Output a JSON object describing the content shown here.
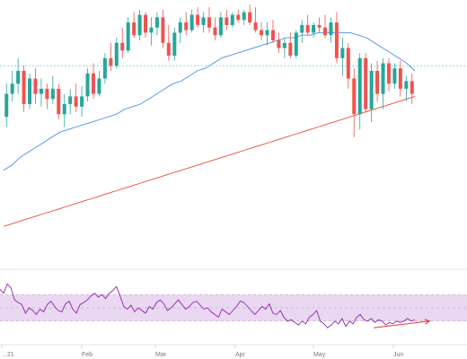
{
  "colors": {
    "up": "#26a69a",
    "down": "#ef5350",
    "ma50": "#4a90e2",
    "ma200": "#e74c3c",
    "rsi": "#8e24aa",
    "rsi_band": "#ead8f2",
    "divergence": "#e53935",
    "price_line": "#5bc0c0"
  },
  "chart_data": [
    {
      "type": "candlestick",
      "title": "",
      "xlabel": "",
      "ylabel": "",
      "x_ticks": [
        "...21",
        "Feb",
        "Mar",
        "Apr",
        "May",
        "Jun"
      ],
      "ylim": [
        0,
        100
      ],
      "current_price_line": 77,
      "grid": false,
      "ohlc": [
        [
          57,
          70,
          53,
          66
        ],
        [
          66,
          75,
          63,
          70
        ],
        [
          70,
          80,
          66,
          75
        ],
        [
          75,
          77,
          59,
          62
        ],
        [
          62,
          74,
          60,
          72
        ],
        [
          72,
          76,
          62,
          66
        ],
        [
          66,
          72,
          61,
          68
        ],
        [
          68,
          70,
          60,
          64
        ],
        [
          64,
          73,
          62,
          68
        ],
        [
          68,
          70,
          56,
          58
        ],
        [
          58,
          66,
          53,
          62
        ],
        [
          62,
          68,
          58,
          65
        ],
        [
          65,
          70,
          59,
          61
        ],
        [
          61,
          69,
          57,
          65
        ],
        [
          65,
          76,
          63,
          74
        ],
        [
          74,
          78,
          64,
          66
        ],
        [
          66,
          75,
          65,
          72
        ],
        [
          72,
          82,
          70,
          80
        ],
        [
          80,
          86,
          75,
          77
        ],
        [
          77,
          88,
          76,
          86
        ],
        [
          86,
          92,
          80,
          83
        ],
        [
          83,
          96,
          82,
          94
        ],
        [
          94,
          98,
          88,
          89
        ],
        [
          89,
          99,
          87,
          97
        ],
        [
          97,
          98,
          88,
          90
        ],
        [
          90,
          96,
          85,
          92
        ],
        [
          92,
          98,
          89,
          96
        ],
        [
          96,
          99,
          84,
          86
        ],
        [
          86,
          93,
          79,
          81
        ],
        [
          81,
          92,
          79,
          90
        ],
        [
          90,
          96,
          86,
          94
        ],
        [
          94,
          98,
          89,
          91
        ],
        [
          91,
          99,
          90,
          97
        ],
        [
          97,
          100,
          92,
          93
        ],
        [
          93,
          98,
          90,
          96
        ],
        [
          96,
          100,
          90,
          92
        ],
        [
          92,
          96,
          87,
          89
        ],
        [
          89,
          98,
          88,
          96
        ],
        [
          96,
          99,
          91,
          93
        ],
        [
          93,
          98,
          92,
          97
        ],
        [
          97,
          99,
          94,
          95
        ],
        [
          95,
          99,
          93,
          98
        ],
        [
          98,
          101,
          93,
          94
        ],
        [
          94,
          100,
          90,
          91
        ],
        [
          91,
          94,
          87,
          89
        ],
        [
          89,
          94,
          85,
          91
        ],
        [
          91,
          95,
          86,
          87
        ],
        [
          87,
          90,
          82,
          84
        ],
        [
          84,
          88,
          80,
          86
        ],
        [
          86,
          90,
          80,
          81
        ],
        [
          81,
          91,
          80,
          90
        ],
        [
          90,
          95,
          86,
          93
        ],
        [
          93,
          97,
          89,
          90
        ],
        [
          90,
          94,
          88,
          93
        ],
        [
          93,
          96,
          90,
          92
        ],
        [
          92,
          97,
          88,
          89
        ],
        [
          89,
          96,
          86,
          94
        ],
        [
          94,
          98,
          78,
          80
        ],
        [
          80,
          88,
          73,
          84
        ],
        [
          84,
          86,
          68,
          72
        ],
        [
          72,
          76,
          49,
          58
        ],
        [
          58,
          82,
          52,
          80
        ],
        [
          80,
          82,
          59,
          60
        ],
        [
          60,
          78,
          55,
          75
        ],
        [
          75,
          79,
          63,
          66
        ],
        [
          66,
          80,
          60,
          78
        ],
        [
          78,
          80,
          67,
          70
        ],
        [
          70,
          78,
          68,
          76
        ],
        [
          76,
          79,
          65,
          68
        ],
        [
          68,
          73,
          63,
          71
        ],
        [
          71,
          74,
          62,
          66
        ]
      ],
      "series": [
        {
          "values": [
            36,
            38,
            41,
            43,
            45,
            47,
            49,
            51,
            52,
            53,
            54,
            55,
            56,
            57,
            58,
            60,
            61,
            62,
            64,
            66,
            68,
            70,
            71,
            73,
            75,
            76,
            78,
            80,
            81,
            82,
            83,
            84,
            85,
            86,
            87,
            88,
            88,
            89,
            89,
            90,
            90,
            90,
            90,
            90,
            89,
            88,
            86,
            84,
            82,
            80,
            78,
            75
          ]
        },
        {
          "values": [
            14,
            15,
            16,
            17,
            18,
            19,
            20,
            21,
            22,
            23,
            24,
            25,
            26,
            27,
            28,
            29,
            30,
            31,
            32,
            33,
            34,
            35,
            36,
            37,
            38,
            39,
            40,
            41,
            42,
            43,
            44,
            45,
            46,
            47,
            48,
            49,
            50,
            51,
            52,
            53,
            54,
            55,
            56,
            57,
            58,
            59,
            60,
            61,
            62,
            63,
            64,
            65
          ]
        }
      ]
    },
    {
      "type": "line",
      "title": "",
      "xlabel": "",
      "ylabel": "",
      "ylim": [
        0,
        100
      ],
      "band": [
        30,
        70
      ],
      "x_ticks": [
        "...21",
        "Feb",
        "Mar",
        "Apr",
        "May",
        "Jun"
      ],
      "series": [
        {
          "values": [
            78,
            72,
            86,
            80,
            62,
            58,
            55,
            42,
            50,
            46,
            40,
            48,
            44,
            55,
            60,
            52,
            46,
            44,
            56,
            60,
            48,
            42,
            55,
            58,
            62,
            68,
            72,
            66,
            70,
            64,
            72,
            76,
            82,
            68,
            52,
            48,
            54,
            44,
            50,
            46,
            42,
            52,
            48,
            58,
            62,
            56,
            46,
            50,
            56,
            62,
            55,
            48,
            52,
            58,
            60,
            54,
            48,
            50,
            44,
            40,
            36,
            48,
            44,
            40,
            46,
            52,
            60,
            58,
            52,
            46,
            40,
            46,
            52,
            48,
            56,
            42,
            40,
            46,
            36,
            30,
            32,
            28,
            24,
            30,
            26,
            36,
            40,
            46,
            30,
            26,
            20,
            24,
            30,
            26,
            34,
            22,
            30,
            26,
            36,
            40,
            32,
            30,
            34,
            28,
            32,
            30,
            24,
            28,
            26,
            30,
            28,
            30,
            34,
            30,
            32
          ]
        }
      ],
      "annotation": {
        "type": "divergence-arrow",
        "from": [
          0.8,
          20
        ],
        "to": [
          0.92,
          30
        ]
      }
    }
  ]
}
